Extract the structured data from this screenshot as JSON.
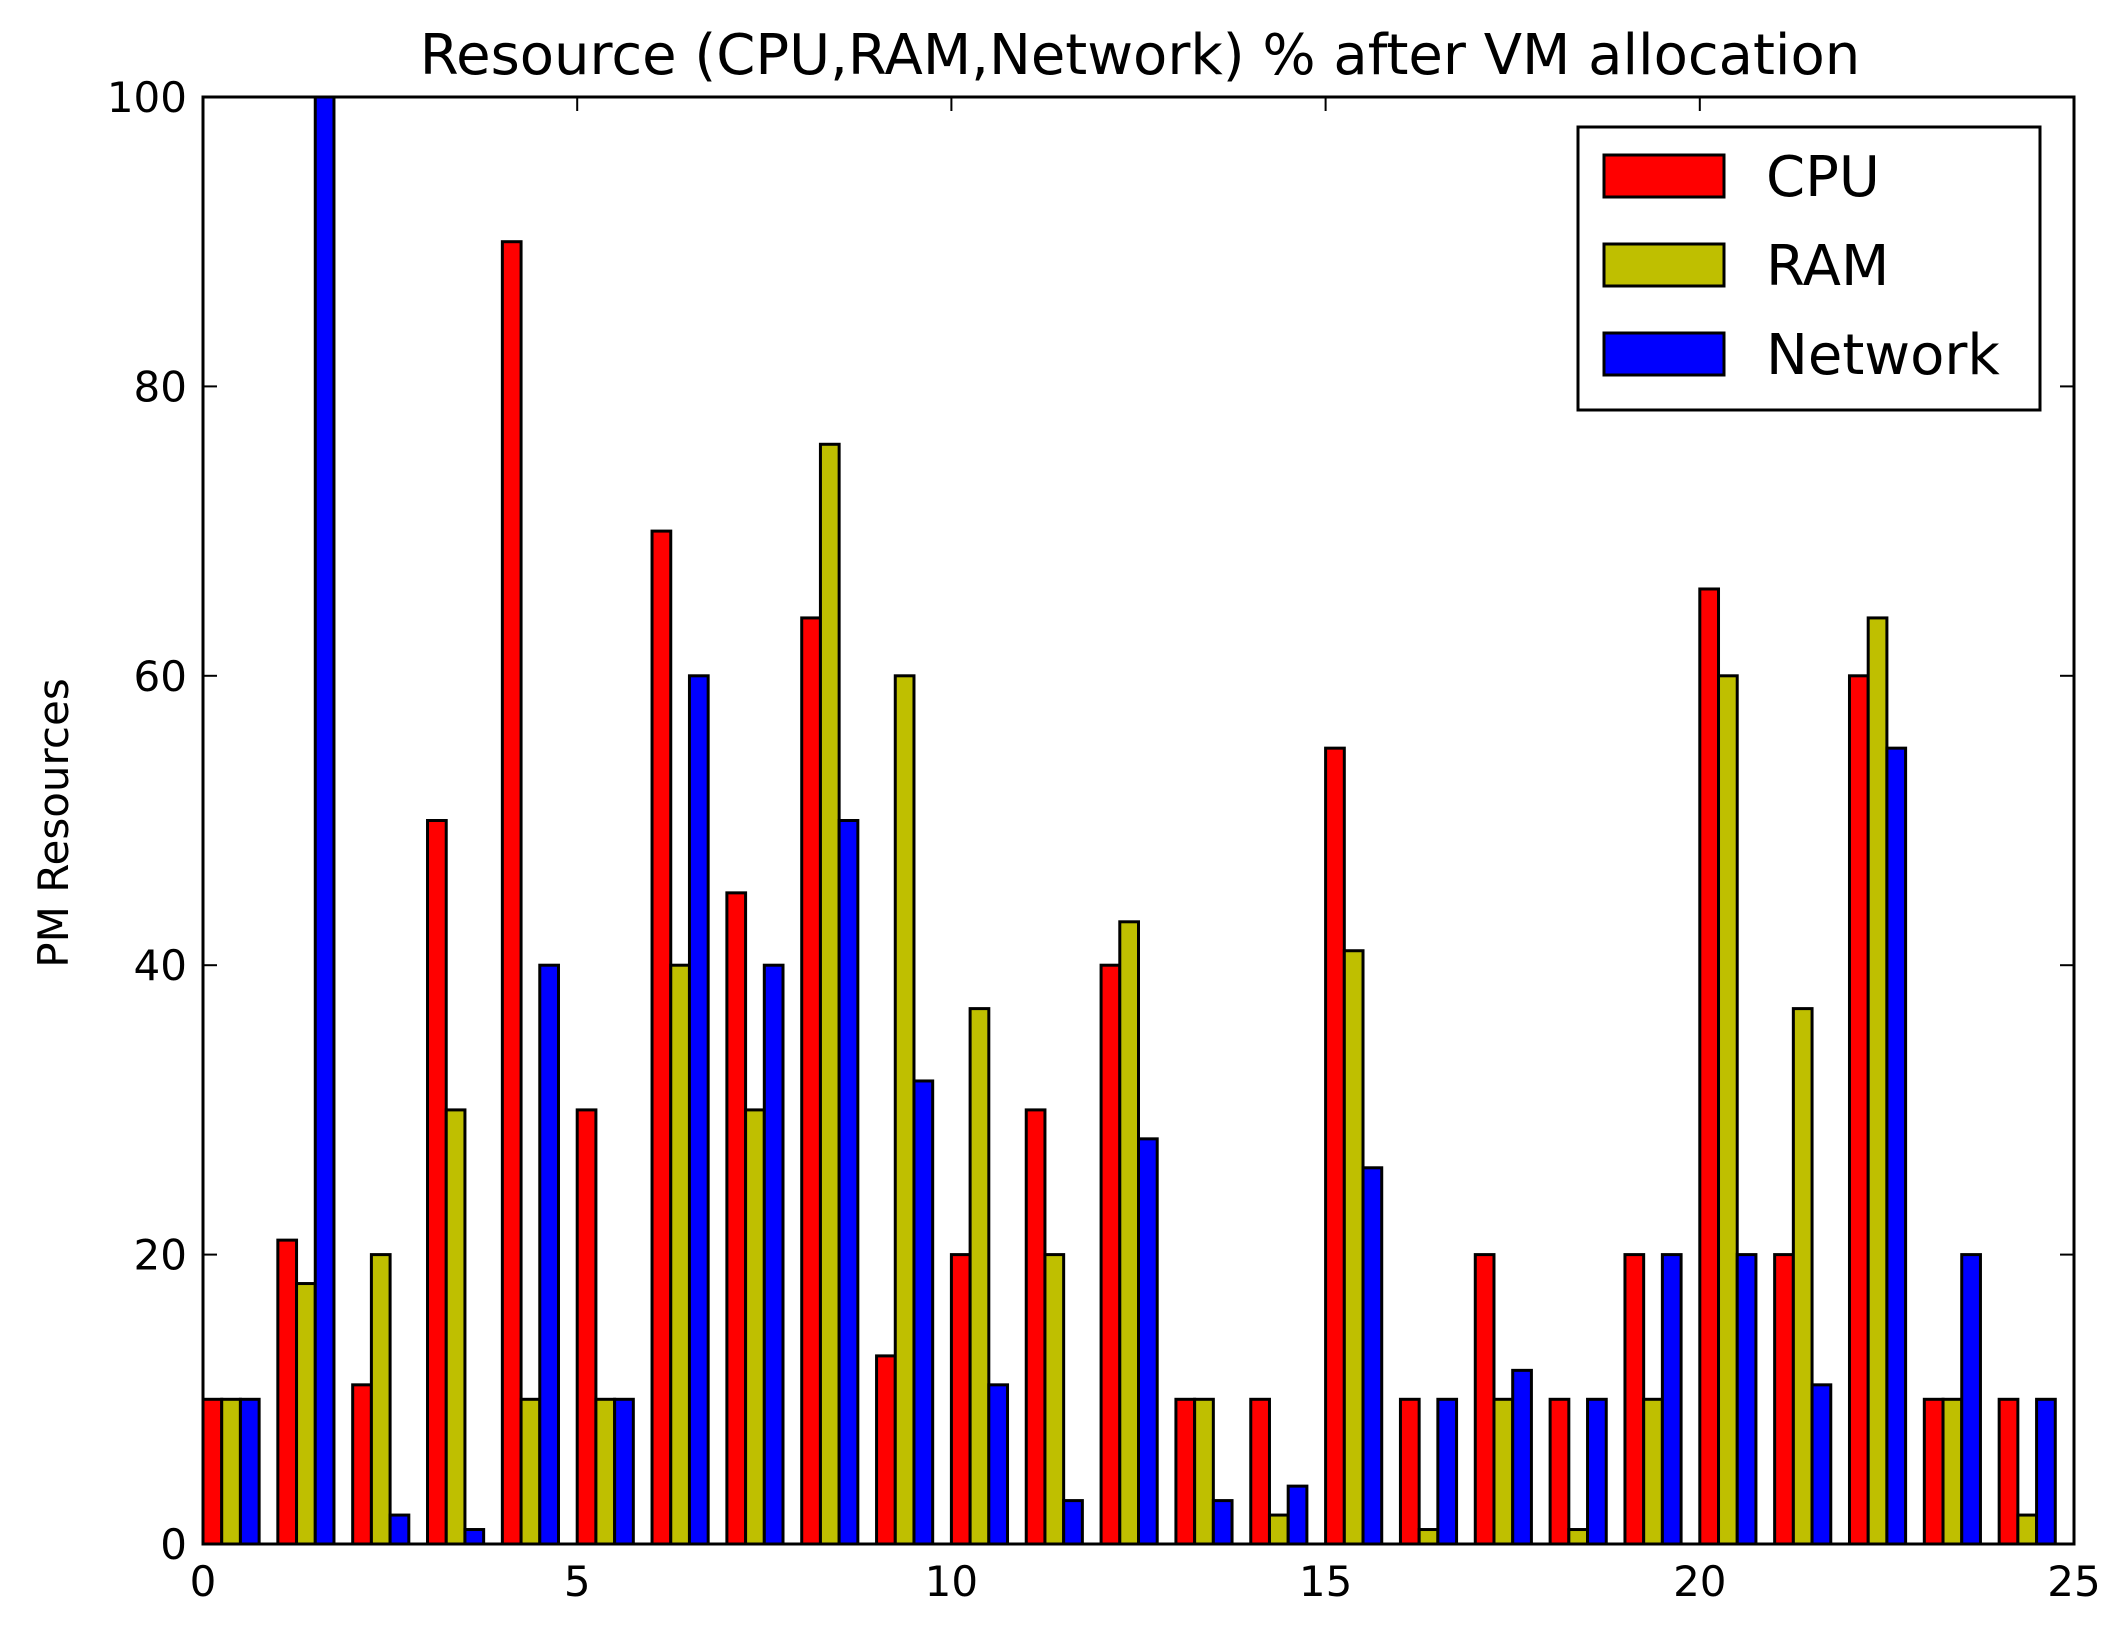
{
  "chart_data": {
    "type": "bar",
    "title": "Resource (CPU,RAM,Network) % after VM allocation",
    "xlabel": "",
    "ylabel": "PM Resources",
    "xlim": [
      0,
      25
    ],
    "ylim": [
      0,
      100
    ],
    "xticks": [
      0,
      5,
      10,
      15,
      20,
      25
    ],
    "yticks": [
      0,
      20,
      40,
      60,
      80,
      100
    ],
    "grid": false,
    "legend_position": "top-right",
    "x": [
      0,
      1,
      2,
      3,
      4,
      5,
      6,
      7,
      8,
      9,
      10,
      11,
      12,
      13,
      14,
      15,
      16,
      17,
      18,
      19,
      20,
      21,
      22,
      23,
      24
    ],
    "series": [
      {
        "name": "CPU",
        "color": "#ff0000",
        "values": [
          10,
          21,
          11,
          50,
          90,
          30,
          70,
          45,
          64,
          13,
          20,
          30,
          40,
          10,
          10,
          55,
          10,
          20,
          10,
          20,
          66,
          20,
          60,
          10,
          10
        ]
      },
      {
        "name": "RAM",
        "color": "#bfbf00",
        "values": [
          10,
          18,
          20,
          30,
          10,
          10,
          40,
          30,
          76,
          60,
          37,
          20,
          43,
          10,
          2,
          41,
          1,
          10,
          1,
          10,
          60,
          37,
          64,
          10,
          2
        ]
      },
      {
        "name": "Network",
        "color": "#0000ff",
        "values": [
          10,
          100,
          2,
          1,
          40,
          10,
          60,
          40,
          50,
          32,
          11,
          3,
          28,
          3,
          4,
          26,
          10,
          12,
          10,
          20,
          20,
          11,
          55,
          20,
          10
        ]
      }
    ]
  }
}
